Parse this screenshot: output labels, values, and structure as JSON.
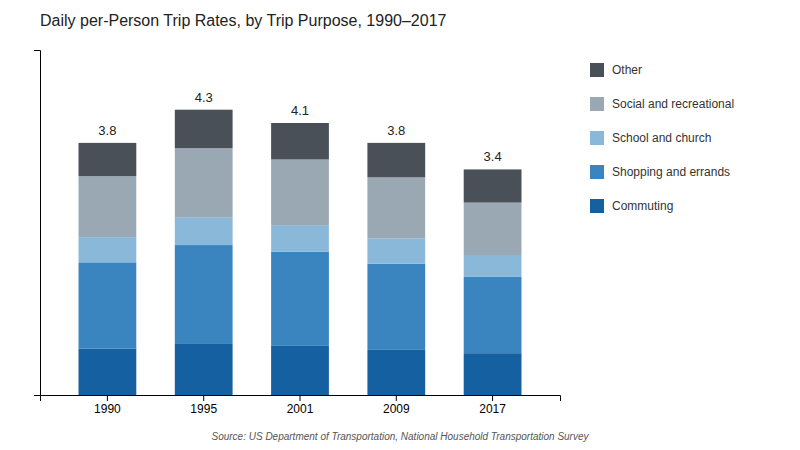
{
  "chart_data": {
    "type": "bar",
    "stacked": true,
    "title": "Daily per-Person Trip Rates, by Trip Purpose, 1990–2017",
    "annotations": [
      "Source: US Department of Transportation, National Household Transportation Survey"
    ],
    "categories": [
      "1990",
      "1995",
      "2001",
      "2009",
      "2017"
    ],
    "series": [
      {
        "name": "Commuting",
        "color": "#1460a0",
        "values": [
          0.7,
          0.78,
          0.74,
          0.68,
          0.63
        ]
      },
      {
        "name": "Shopping and errands",
        "color": "#3a85c0",
        "values": [
          1.3,
          1.48,
          1.42,
          1.3,
          1.15
        ]
      },
      {
        "name": "School and church",
        "color": "#8ab8d8",
        "values": [
          0.38,
          0.42,
          0.4,
          0.38,
          0.33
        ]
      },
      {
        "name": "Social and recreational",
        "color": "#9aa8b4",
        "values": [
          0.92,
          1.04,
          0.99,
          0.92,
          0.79
        ]
      },
      {
        "name": "Other",
        "color": "#4a5058",
        "values": [
          0.5,
          0.58,
          0.55,
          0.52,
          0.5
        ]
      }
    ],
    "totals": [
      3.8,
      4.3,
      4.1,
      3.8,
      3.4
    ],
    "ylim": [
      0,
      5.2
    ],
    "yticks": [],
    "grid": false,
    "tick_labels": "x"
  }
}
